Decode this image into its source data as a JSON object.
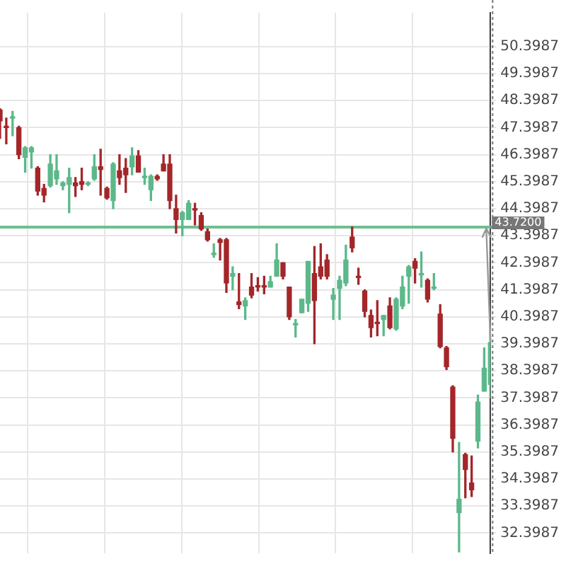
{
  "chart_data": {
    "type": "candlestick",
    "categories": [
      null,
      null,
      null,
      null,
      null,
      null,
      null,
      null,
      null,
      null,
      null,
      null,
      null,
      null,
      null,
      null,
      null,
      null,
      null,
      null,
      null,
      null,
      null,
      null,
      null,
      null,
      null,
      null,
      null,
      null,
      null,
      null,
      null,
      null,
      null,
      null,
      null,
      null,
      null,
      null,
      null,
      null,
      null,
      null,
      null,
      null,
      null,
      null,
      null,
      null,
      null,
      null,
      null,
      null,
      null,
      null,
      null,
      null,
      null,
      null,
      null,
      null,
      null,
      null,
      null,
      null,
      null,
      null,
      null,
      null,
      null,
      null,
      null,
      null,
      null,
      null,
      null,
      null,
      null
    ],
    "ohlc": [
      [
        48.05,
        48.1,
        47.0,
        47.65
      ],
      [
        47.45,
        47.75,
        46.8,
        47.4
      ],
      [
        47.75,
        48.0,
        47.1,
        47.8
      ],
      [
        47.4,
        47.45,
        46.25,
        46.4
      ],
      [
        46.3,
        46.7,
        45.75,
        46.65
      ],
      [
        46.5,
        46.7,
        45.9,
        46.65
      ],
      [
        45.9,
        45.95,
        44.9,
        45.05
      ],
      [
        45.15,
        45.3,
        44.65,
        44.9
      ],
      [
        45.25,
        46.4,
        45.2,
        46.05
      ],
      [
        45.5,
        46.4,
        45.3,
        45.8
      ],
      [
        45.25,
        45.4,
        45.1,
        45.35
      ],
      [
        45.3,
        45.9,
        44.25,
        45.55
      ],
      [
        45.35,
        45.55,
        44.85,
        45.25
      ],
      [
        45.4,
        45.9,
        45.1,
        45.3
      ],
      [
        45.3,
        45.4,
        45.25,
        45.35
      ],
      [
        45.5,
        46.4,
        45.45,
        45.95
      ],
      [
        45.95,
        46.6,
        44.9,
        45.85
      ],
      [
        45.15,
        45.2,
        44.75,
        44.8
      ],
      [
        44.7,
        46.1,
        44.4,
        46.05
      ],
      [
        45.8,
        46.4,
        45.3,
        45.55
      ],
      [
        45.9,
        46.25,
        45.0,
        45.65
      ],
      [
        45.95,
        46.65,
        45.65,
        46.35
      ],
      [
        46.35,
        46.55,
        45.75,
        45.75
      ],
      [
        45.55,
        45.9,
        45.3,
        45.6
      ],
      [
        45.1,
        45.65,
        44.7,
        45.6
      ],
      [
        45.6,
        45.65,
        45.45,
        45.5
      ],
      [
        46.05,
        46.4,
        45.8,
        45.8
      ],
      [
        46.05,
        46.4,
        44.4,
        44.7
      ],
      [
        44.4,
        44.9,
        43.5,
        44.0
      ],
      [
        44.0,
        44.3,
        43.4,
        44.25
      ],
      [
        44.0,
        44.7,
        44.0,
        44.6
      ],
      [
        44.4,
        44.6,
        43.8,
        44.35
      ],
      [
        44.15,
        44.25,
        43.6,
        43.65
      ],
      [
        43.55,
        43.65,
        43.2,
        43.25
      ],
      [
        42.7,
        43.1,
        42.6,
        42.75
      ],
      [
        43.25,
        43.3,
        42.5,
        43.15
      ],
      [
        43.25,
        43.3,
        41.3,
        41.65
      ],
      [
        41.9,
        42.25,
        41.4,
        42.0
      ],
      [
        40.95,
        42.0,
        40.7,
        40.85
      ],
      [
        40.8,
        41.1,
        40.3,
        41.0
      ],
      [
        41.5,
        42.0,
        41.1,
        41.2
      ],
      [
        41.55,
        41.85,
        41.35,
        41.5
      ],
      [
        41.55,
        41.9,
        41.25,
        41.5
      ],
      [
        41.5,
        41.9,
        41.5,
        41.7
      ],
      [
        41.9,
        43.1,
        41.9,
        42.5
      ],
      [
        42.4,
        42.4,
        41.8,
        41.9
      ],
      [
        41.5,
        41.5,
        40.3,
        40.4
      ],
      [
        40.1,
        40.3,
        39.65,
        40.15
      ],
      [
        40.55,
        41.05,
        40.55,
        41.05
      ],
      [
        40.9,
        42.45,
        40.6,
        42.45
      ],
      [
        42.0,
        43.0,
        39.4,
        41.0
      ],
      [
        42.25,
        43.1,
        41.8,
        41.9
      ],
      [
        42.5,
        42.7,
        41.8,
        41.9
      ],
      [
        41.05,
        41.45,
        40.3,
        41.2
      ],
      [
        41.45,
        41.9,
        40.3,
        41.75
      ],
      [
        41.65,
        43.05,
        41.55,
        42.5
      ],
      [
        43.35,
        43.72,
        42.8,
        42.95
      ],
      [
        41.9,
        42.2,
        41.6,
        41.85
      ],
      [
        41.35,
        41.4,
        40.4,
        40.6
      ],
      [
        40.45,
        40.65,
        39.65,
        40.0
      ],
      [
        40.2,
        41.0,
        39.7,
        40.15
      ],
      [
        40.3,
        40.45,
        39.7,
        40.45
      ],
      [
        40.8,
        41.1,
        39.95,
        40.0
      ],
      [
        39.95,
        41.1,
        39.9,
        41.05
      ],
      [
        40.8,
        41.9,
        40.7,
        41.5
      ],
      [
        41.9,
        42.3,
        40.9,
        42.25
      ],
      [
        42.45,
        42.55,
        41.65,
        42.2
      ],
      [
        41.95,
        42.8,
        41.5,
        42.0
      ],
      [
        41.75,
        41.8,
        40.95,
        41.05
      ],
      [
        41.45,
        42.0,
        41.4,
        41.5
      ],
      [
        40.5,
        40.85,
        39.25,
        39.3
      ],
      [
        39.25,
        39.3,
        38.45,
        38.55
      ],
      [
        37.8,
        37.85,
        35.4,
        35.9
      ],
      [
        33.15,
        35.75,
        31.7,
        33.65
      ],
      [
        35.3,
        35.35,
        33.7,
        34.75
      ],
      [
        34.25,
        35.25,
        33.75,
        34.0
      ],
      [
        35.8,
        37.5,
        35.55,
        37.25
      ],
      [
        37.65,
        39.25,
        37.65,
        38.5
      ],
      [
        37.9,
        39.9,
        37.4,
        39.45
      ]
    ],
    "colors": [
      "#a3262a",
      "#a3262a",
      "#5cb88a",
      "#a3262a",
      "#5cb88a",
      "#5cb88a",
      "#a3262a",
      "#a3262a",
      "#5cb88a",
      "#5cb88a",
      "#5cb88a",
      "#5cb88a",
      "#a3262a",
      "#a3262a",
      "#5cb88a",
      "#5cb88a",
      "#a3262a",
      "#a3262a",
      "#5cb88a",
      "#a3262a",
      "#a3262a",
      "#5cb88a",
      "#a3262a",
      "#5cb88a",
      "#5cb88a",
      "#a3262a",
      "#a3262a",
      "#a3262a",
      "#a3262a",
      "#5cb88a",
      "#5cb88a",
      "#a3262a",
      "#a3262a",
      "#a3262a",
      "#5cb88a",
      "#a3262a",
      "#a3262a",
      "#5cb88a",
      "#a3262a",
      "#5cb88a",
      "#a3262a",
      "#a3262a",
      "#a3262a",
      "#5cb88a",
      "#5cb88a",
      "#a3262a",
      "#a3262a",
      "#5cb88a",
      "#5cb88a",
      "#5cb88a",
      "#a3262a",
      "#a3262a",
      "#a3262a",
      "#5cb88a",
      "#5cb88a",
      "#5cb88a",
      "#a3262a",
      "#a3262a",
      "#a3262a",
      "#a3262a",
      "#a3262a",
      "#5cb88a",
      "#a3262a",
      "#5cb88a",
      "#5cb88a",
      "#5cb88a",
      "#a3262a",
      "#5cb88a",
      "#a3262a",
      "#5cb88a",
      "#a3262a",
      "#a3262a",
      "#a3262a",
      "#5cb88a",
      "#a3262a",
      "#a3262a",
      "#5cb88a",
      "#5cb88a",
      "#5cb88a"
    ],
    "ylim": [
      31.65,
      51.65
    ],
    "yticks": [
      32.3987,
      33.3987,
      34.3987,
      35.3987,
      36.3987,
      37.3987,
      38.3987,
      39.3987,
      40.3987,
      41.3987,
      42.3987,
      43.3987,
      44.3987,
      45.3987,
      46.3987,
      47.3987,
      48.3987,
      49.3987,
      50.3987
    ],
    "ref_lines": [
      {
        "axis": "y",
        "value": 43.72,
        "label": "43.7200",
        "color": "#6dbf8f"
      }
    ],
    "grid": true,
    "legend": false,
    "tick_labels": "y"
  }
}
